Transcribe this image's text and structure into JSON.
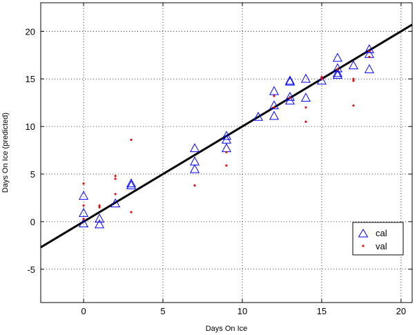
{
  "chart_data": {
    "type": "scatter",
    "xlabel": "Days On Ice",
    "ylabel": "Days On Ice (predicted)",
    "xlim": [
      -2.7,
      20.7
    ],
    "ylim": [
      -8.5,
      23.0
    ],
    "xticks": [
      0,
      5,
      10,
      15,
      20
    ],
    "yticks": [
      -5,
      0,
      5,
      10,
      15,
      20
    ],
    "grid": true,
    "grid_style": "dotted",
    "legend_position": "lower-right",
    "fit_line": {
      "slope": 1.0,
      "intercept": 0.0,
      "color": "#000000"
    },
    "series": [
      {
        "name": "cal",
        "marker": "triangle",
        "color": "#0000ff",
        "points": [
          [
            0,
            2.7
          ],
          [
            0,
            0.9
          ],
          [
            0,
            -0.2
          ],
          [
            1,
            0.3
          ],
          [
            1,
            -0.3
          ],
          [
            2,
            1.9
          ],
          [
            3,
            4.0
          ],
          [
            3,
            3.8
          ],
          [
            7,
            7.7
          ],
          [
            7,
            6.3
          ],
          [
            7,
            5.5
          ],
          [
            9,
            9.0
          ],
          [
            9,
            8.6
          ],
          [
            9,
            7.7
          ],
          [
            11,
            11.0
          ],
          [
            12,
            13.7
          ],
          [
            12,
            12.2
          ],
          [
            12,
            11.1
          ],
          [
            13,
            14.8
          ],
          [
            13,
            14.7
          ],
          [
            13,
            13.1
          ],
          [
            13,
            12.7
          ],
          [
            14,
            15.0
          ],
          [
            14,
            13.0
          ],
          [
            15,
            14.8
          ],
          [
            16,
            17.2
          ],
          [
            16,
            16.1
          ],
          [
            16,
            15.6
          ],
          [
            16,
            15.4
          ],
          [
            17,
            16.4
          ],
          [
            18,
            18.1
          ],
          [
            18,
            17.6
          ],
          [
            18,
            16.0
          ]
        ]
      },
      {
        "name": "val",
        "marker": "dot",
        "color": "#e01010",
        "points": [
          [
            0,
            4.0
          ],
          [
            0,
            1.7
          ],
          [
            0,
            0.3
          ],
          [
            1,
            1.7
          ],
          [
            1,
            1.5
          ],
          [
            2,
            4.8
          ],
          [
            2,
            4.5
          ],
          [
            2,
            2.9
          ],
          [
            3,
            8.6
          ],
          [
            3,
            1.0
          ],
          [
            7,
            3.8
          ],
          [
            9,
            7.3
          ],
          [
            9,
            5.9
          ],
          [
            12,
            13.2
          ],
          [
            12,
            12.0
          ],
          [
            13,
            13.0
          ],
          [
            14,
            12.0
          ],
          [
            14,
            10.5
          ],
          [
            15,
            15.2
          ],
          [
            15,
            15.0
          ],
          [
            16,
            16.0
          ],
          [
            17,
            15.0
          ],
          [
            17,
            14.8
          ],
          [
            17,
            12.2
          ],
          [
            18,
            17.9
          ],
          [
            18,
            17.3
          ]
        ]
      }
    ]
  }
}
